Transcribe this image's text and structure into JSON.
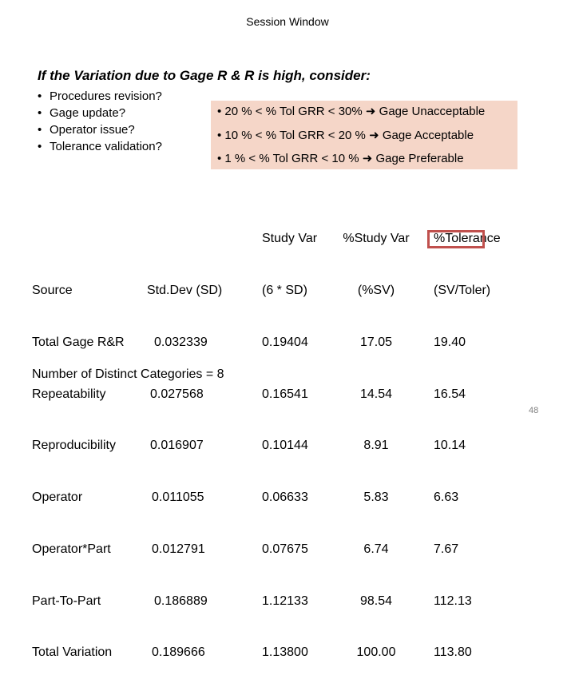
{
  "window_title": "Session Window",
  "heading": "If the Variation due to Gage  R & R is high, consider:",
  "bullets": [
    "Procedures revision?",
    "Gage update?",
    "Operator issue?",
    "Tolerance validation?"
  ],
  "criteria": [
    {
      "condition": "20 % < % Tol GRR < 30%",
      "result": "Gage Unacceptable"
    },
    {
      "condition": "10 % < % Tol GRR < 20 %",
      "result": "Gage Acceptable"
    },
    {
      "condition": "1 % <  % Tol GRR < 10 %",
      "result": "Gage Preferable"
    }
  ],
  "table": {
    "headers": {
      "source": "Source",
      "stddev": "Std.Dev (SD)",
      "study_var": [
        "Study Var",
        "(6 * SD)"
      ],
      "pct_study_var": [
        "%Study Var",
        "(%SV)"
      ],
      "pct_tolerance": [
        "%Tolerance",
        "(SV/Toler)"
      ]
    },
    "rows": [
      {
        "source": "Total Gage R&R",
        "stddev": "0.032339",
        "study_var": "0.19404",
        "pct_study_var": "17.05",
        "pct_tolerance": "19.40"
      },
      {
        "source": "Repeatability",
        "stddev": "0.027568",
        "study_var": "0.16541",
        "pct_study_var": "14.54",
        "pct_tolerance": "16.54"
      },
      {
        "source": "Reproducibility",
        "stddev": "0.016907",
        "study_var": "0.10144",
        "pct_study_var": "8.91",
        "pct_tolerance": "10.14"
      },
      {
        "source": "Operator",
        "stddev": "0.011055",
        "study_var": "0.06633",
        "pct_study_var": "5.83",
        "pct_tolerance": "6.63"
      },
      {
        "source": "Operator*Part",
        "stddev": "0.012791",
        "study_var": "0.07675",
        "pct_study_var": "6.74",
        "pct_tolerance": "7.67"
      },
      {
        "source": "Part-To-Part",
        "stddev": "0.186889",
        "study_var": "1.12133",
        "pct_study_var": "98.54",
        "pct_tolerance": "112.13"
      },
      {
        "source": "Total Variation",
        "stddev": "0.189666",
        "study_var": "1.13800",
        "pct_study_var": "100.00",
        "pct_tolerance": "113.80"
      }
    ]
  },
  "ndc_text": "Number of Distinct Categories = 8",
  "page_number": "48",
  "colors": {
    "highlight_border": "#c0504d",
    "criteria_background": "#f5d6c8",
    "page_number": "#808080"
  }
}
